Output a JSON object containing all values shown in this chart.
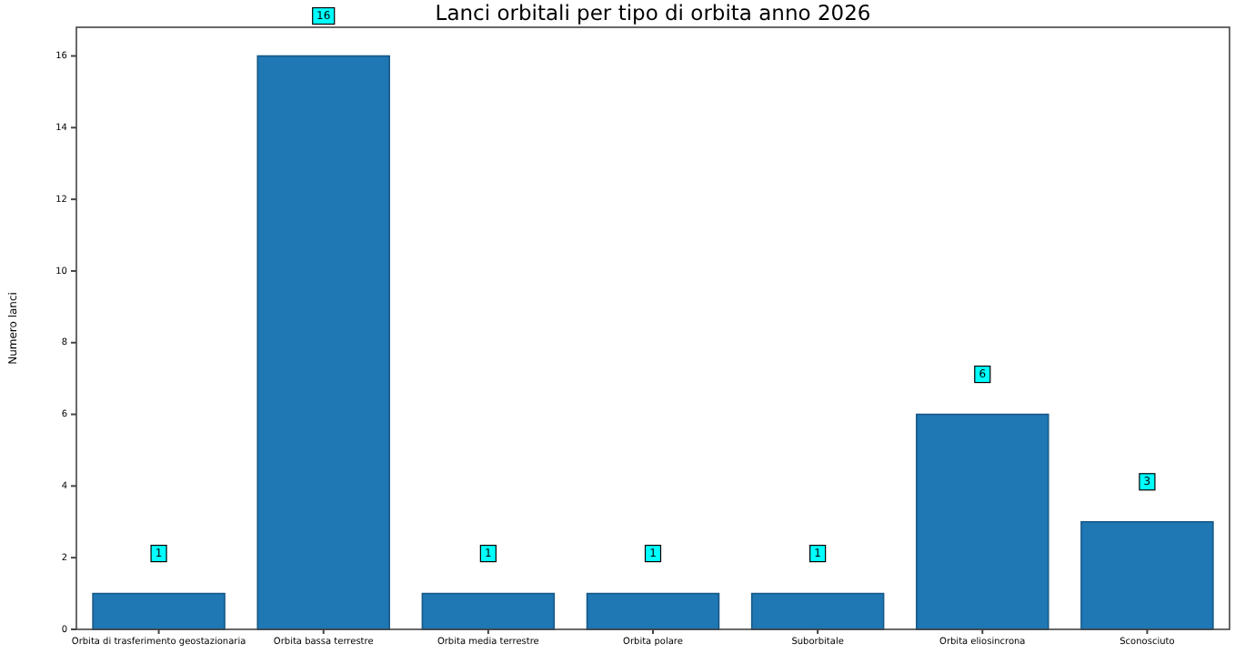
{
  "chart_data": {
    "type": "bar",
    "title": "Lanci orbitali per tipo di orbita anno 2026",
    "ylabel": "Numero lanci",
    "categories": [
      "Orbita di trasferimento geostazionaria",
      "Orbita bassa terrestre",
      "Orbita media terrestre",
      "Orbita polare",
      "Suborbitale",
      "Orbita eliosincrona",
      "Sconosciuto"
    ],
    "values": [
      1,
      16,
      1,
      1,
      1,
      6,
      3
    ],
    "color": "#1f77b4",
    "ylim": [
      0,
      16.8
    ],
    "yticks": [
      0,
      2,
      4,
      6,
      8,
      10,
      12,
      14,
      16
    ],
    "data_labels": true,
    "grid": false
  }
}
